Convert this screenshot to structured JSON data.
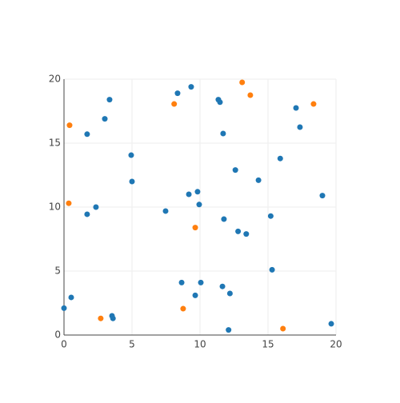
{
  "chart_data": {
    "type": "scatter",
    "xlim": [
      0,
      20
    ],
    "ylim": [
      0,
      20
    ],
    "xticks": [
      0,
      5,
      10,
      15,
      20
    ],
    "yticks": [
      0,
      5,
      10,
      15,
      20
    ],
    "grid": true,
    "series": [
      {
        "color": "#1f77b4",
        "x": [
          0,
          0.53,
          1.7,
          1.7,
          2.35,
          3.0,
          3.35,
          3.53,
          3.6,
          4.94,
          5.0,
          7.47,
          8.35,
          8.65,
          9.18,
          9.35,
          9.65,
          9.82,
          9.94,
          10.06,
          11.35,
          11.47,
          11.65,
          11.7,
          11.76,
          12.1,
          12.2,
          12.6,
          12.8,
          13.4,
          14.3,
          15.2,
          15.3,
          15.9,
          17.06,
          17.35,
          19.0,
          19.65
        ],
        "y": [
          2.1,
          2.94,
          9.44,
          15.7,
          10.0,
          16.9,
          18.4,
          1.5,
          1.3,
          14.06,
          12.0,
          9.69,
          18.9,
          4.1,
          11.0,
          19.4,
          3.1,
          11.2,
          10.2,
          4.1,
          18.4,
          18.2,
          3.8,
          15.75,
          9.06,
          0.4,
          3.25,
          12.9,
          8.1,
          7.9,
          12.1,
          9.3,
          5.1,
          13.8,
          17.75,
          16.25,
          10.9,
          0.88
        ]
      },
      {
        "color": "#ff7f0e",
        "x": [
          0.41,
          0.35,
          2.7,
          8.1,
          8.76,
          9.65,
          13.1,
          13.7,
          16.1,
          18.35
        ],
        "y": [
          16.4,
          10.3,
          1.3,
          18.06,
          2.06,
          8.4,
          19.75,
          18.75,
          0.5,
          18.06
        ]
      }
    ]
  }
}
